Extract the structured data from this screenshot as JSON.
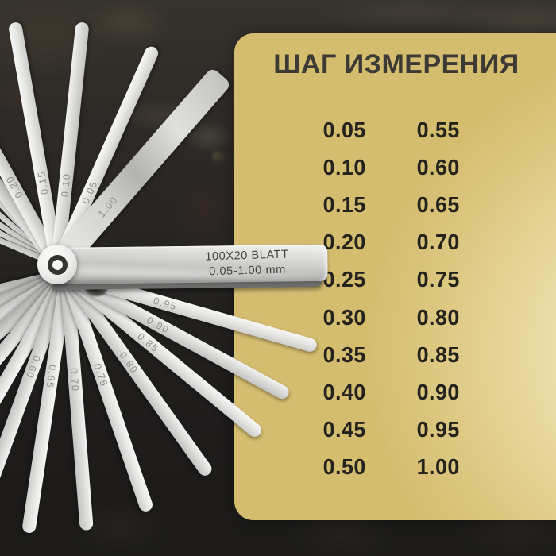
{
  "panel": {
    "title": "ШАГ ИЗМЕРЕНИЯ",
    "rows": [
      [
        "0.05",
        "0.55"
      ],
      [
        "0.10",
        "0.60"
      ],
      [
        "0.15",
        "0.65"
      ],
      [
        "0.20",
        "0.70"
      ],
      [
        "0.25",
        "0.75"
      ],
      [
        "0.30",
        "0.80"
      ],
      [
        "0.35",
        "0.85"
      ],
      [
        "0.40",
        "0.90"
      ],
      [
        "0.45",
        "0.95"
      ],
      [
        "0.50",
        "1.00"
      ]
    ],
    "colors": {
      "gold_center": "#f8f2d4",
      "gold_edge": "#d5bd70",
      "text": "#23221d"
    }
  },
  "gauge": {
    "handle_line1": "100X20 BLATT",
    "handle_line2": "0.05-1.00 mm",
    "top_blade_labels": [
      "0.20",
      "0.15",
      "0.10",
      "0.05",
      "1.00"
    ],
    "bottom_blade_labels": [
      "0.95",
      "0.90",
      "0.85",
      "0.80",
      "0.75",
      "0.70",
      "0.65",
      "0.60"
    ],
    "colors": {
      "blade": "#dcdcda",
      "etch_label": "#8f8f8d",
      "handle_text": "#3f3f3d"
    }
  },
  "background_color": "#242220"
}
